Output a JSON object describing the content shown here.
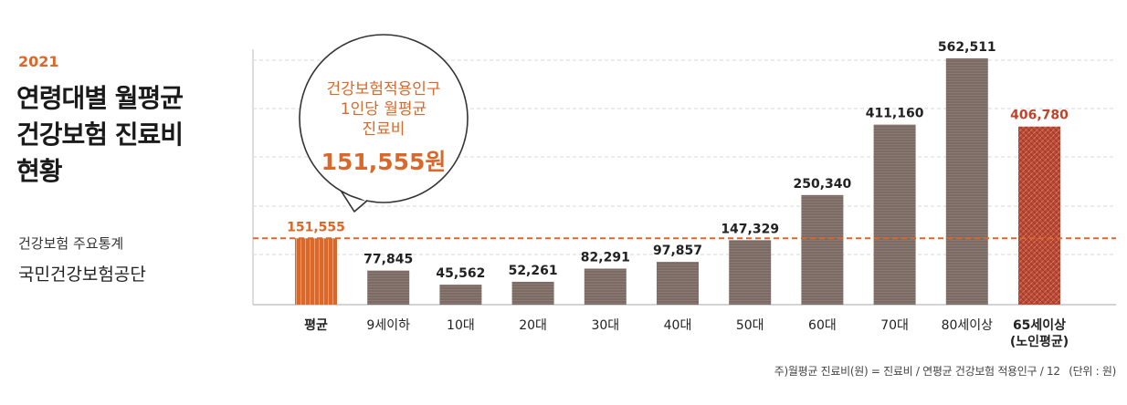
{
  "sidebar": {
    "year": "2021",
    "title_lines": [
      "연령대별 월평균",
      "건강보험 진료비",
      "현황"
    ],
    "source_line1": "건강보험 주요통계",
    "source_line2": "국민건강보험공단"
  },
  "callout": {
    "lines": [
      "건강보험적용인구",
      "1인당 월평균",
      "진료비"
    ],
    "value": "151,555원"
  },
  "footnote": "주)월평균 진료비(원) = 진료비 / 연평균 건강보험 적용인구 / 12",
  "unit_note": "(단위 : 원)",
  "colors": {
    "accent": "#d9682a",
    "bar": "#7c6a64",
    "bar_highlight": "#b94a35",
    "label_dark": "#222222",
    "label_highlight": "#c0432a"
  },
  "chart_data": {
    "type": "bar",
    "categories": [
      "평균",
      "9세이하",
      "10대",
      "20대",
      "30대",
      "40대",
      "50대",
      "60대",
      "70대",
      "80세이상",
      "65세이상\n(노인평균)"
    ],
    "values": [
      151555,
      77845,
      45562,
      52261,
      82291,
      97857,
      147329,
      250340,
      411160,
      562511,
      406780
    ],
    "value_labels": [
      "151,555",
      "77,845",
      "45,562",
      "52,261",
      "82,291",
      "97,857",
      "147,329",
      "250,340",
      "411,160",
      "562,511",
      "406,780"
    ],
    "highlight": {
      "average_index": 0,
      "elderly_index": 10
    },
    "reference_line": 151555,
    "ylim": [
      0,
      600000
    ],
    "title": "",
    "xlabel": "",
    "ylabel": "",
    "grid": true
  }
}
